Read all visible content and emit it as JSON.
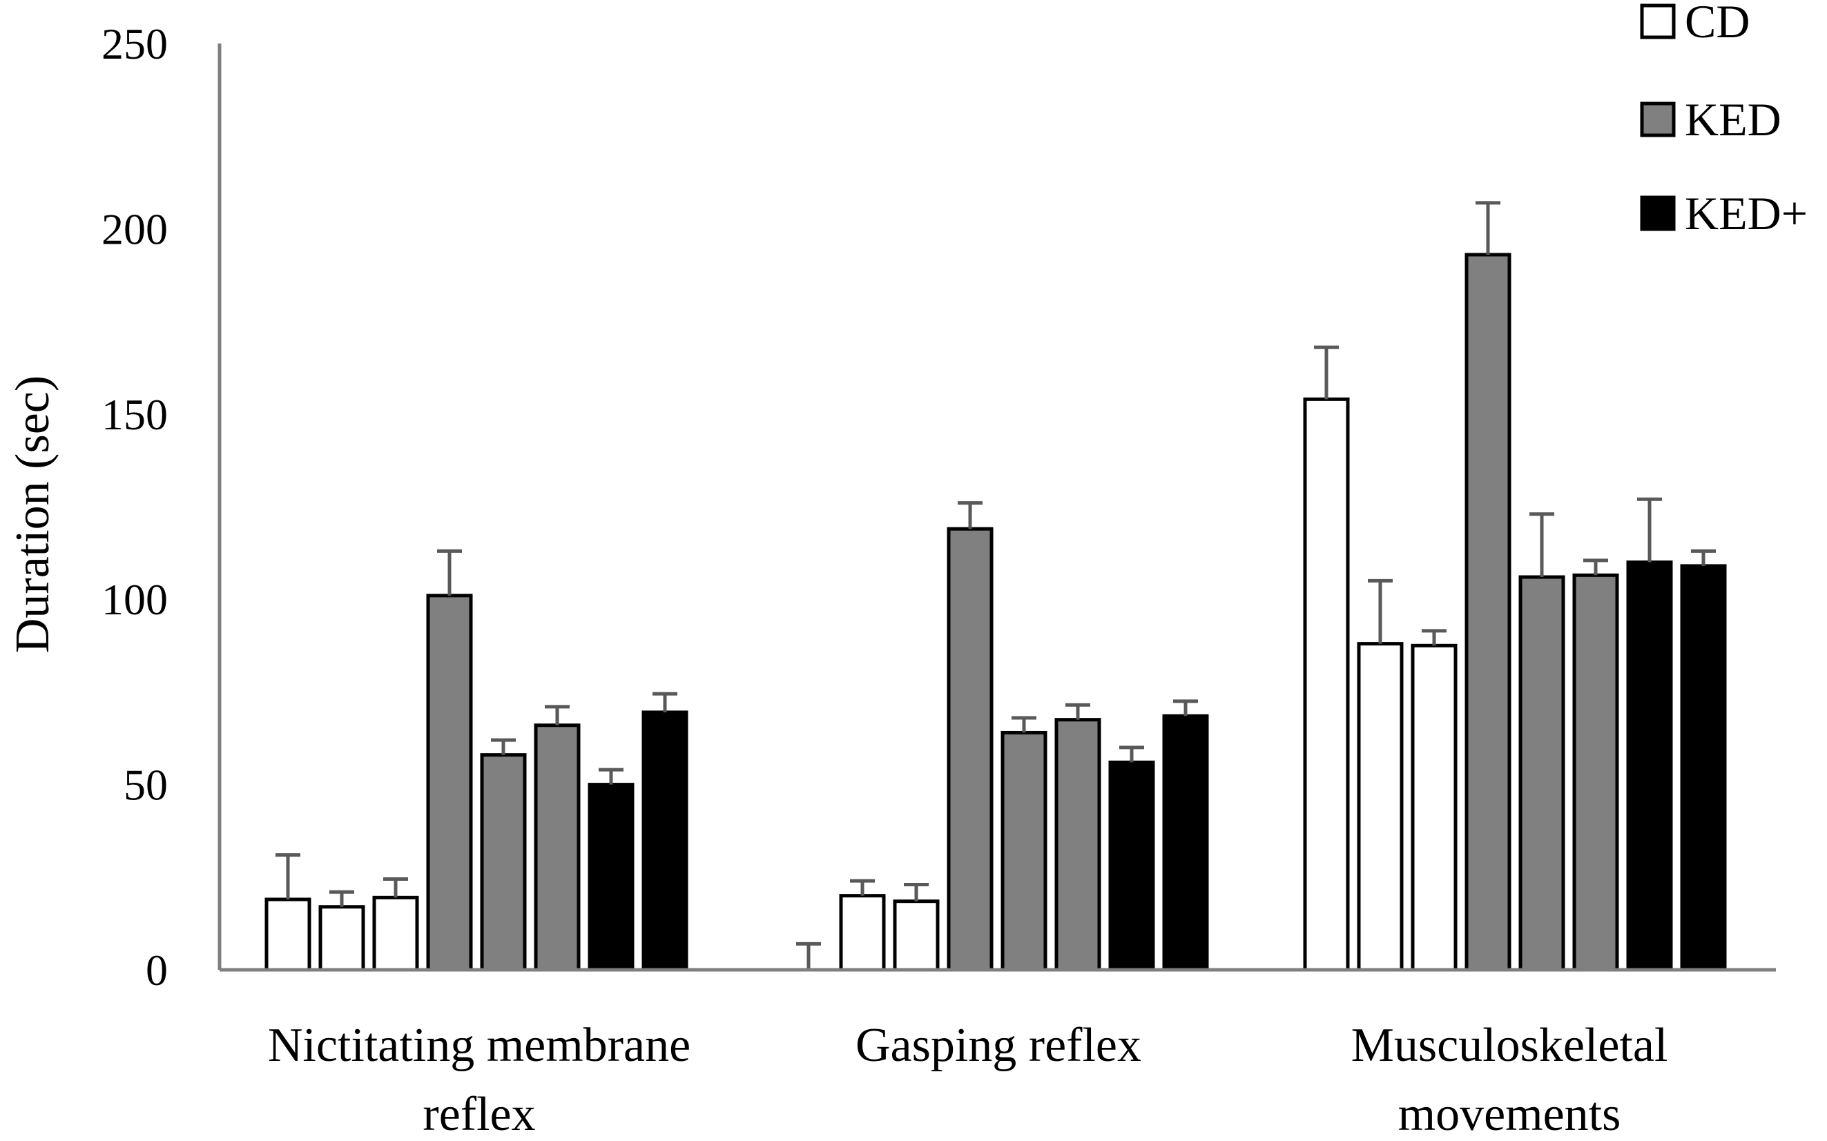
{
  "chart_data": {
    "type": "bar",
    "ylabel": "Duration (sec)",
    "xlabel": "",
    "ylim": [
      0,
      250
    ],
    "yticks": [
      0,
      50,
      100,
      150,
      200,
      250
    ],
    "grid": false,
    "legend_position": "top-right",
    "categories": [
      [
        "Nictitating membrane",
        "reflex"
      ],
      [
        "Gasping reflex"
      ],
      [
        "Musculoskeletal",
        "movements"
      ]
    ],
    "series": [
      {
        "name": "CD",
        "color": "#ffffff",
        "values": [
          [
            19,
            17,
            19.5
          ],
          [
            0,
            20,
            18.5
          ],
          [
            154,
            88,
            87.5
          ]
        ],
        "errors": [
          [
            12,
            4,
            5
          ],
          [
            7,
            4,
            4.5
          ],
          [
            14,
            17,
            4
          ]
        ]
      },
      {
        "name": "KED",
        "color": "#808080",
        "values": [
          [
            101,
            58,
            66
          ],
          [
            119,
            64,
            67.5
          ],
          [
            193,
            106,
            106.5
          ]
        ],
        "errors": [
          [
            12,
            4,
            5
          ],
          [
            7,
            4,
            4
          ],
          [
            14,
            17,
            4
          ]
        ]
      },
      {
        "name": "KED+",
        "color": "#000000",
        "values": [
          [
            50,
            69.5
          ],
          [
            56,
            68.5
          ],
          [
            110,
            109
          ]
        ],
        "errors": [
          [
            4,
            5
          ],
          [
            4,
            4
          ],
          [
            17,
            4
          ]
        ]
      }
    ]
  }
}
